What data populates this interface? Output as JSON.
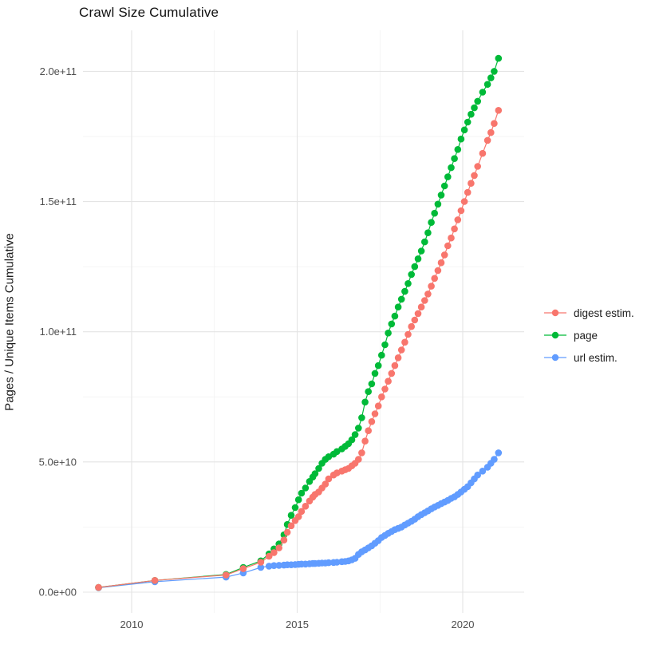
{
  "chart_data": {
    "type": "scatter",
    "title": "Crawl Size Cumulative",
    "xlabel": "",
    "ylabel": "Pages / Unique Items Cumulative",
    "legend_position": "right",
    "grid": "major and minor, light gray on white",
    "x_axis": {
      "tick_values": [
        2010,
        2015,
        2020
      ],
      "tick_labels": [
        "2010",
        "2015",
        "2020"
      ],
      "minor_tick_values": [
        2012.5,
        2017.5
      ],
      "range": [
        2008.55,
        2021.8
      ]
    },
    "y_axis": {
      "unit_note": "series values stored in units of 1e10",
      "tick_values_e10": [
        0,
        5,
        10,
        15,
        20
      ],
      "tick_labels": [
        "0.0e+00",
        "5.0e+10",
        "1.0e+11",
        "1.5e+11",
        "2.0e+11"
      ],
      "minor_tick_values_e10": [
        2.5,
        7.5,
        12.5,
        17.5
      ],
      "range_e10": [
        -0.75,
        21.6
      ]
    },
    "x_years": [
      2009.0,
      2010.7,
      2012.85,
      2013.37,
      2013.9,
      2014.15,
      2014.3,
      2014.45,
      2014.6,
      2014.7,
      2014.82,
      2014.94,
      2015.04,
      2015.13,
      2015.25,
      2015.37,
      2015.47,
      2015.54,
      2015.65,
      2015.75,
      2015.85,
      2015.95,
      2016.1,
      2016.2,
      2016.35,
      2016.45,
      2016.55,
      2016.65,
      2016.75,
      2016.85,
      2016.95,
      2017.05,
      2017.15,
      2017.25,
      2017.35,
      2017.45,
      2017.55,
      2017.65,
      2017.75,
      2017.85,
      2017.95,
      2018.05,
      2018.15,
      2018.25,
      2018.35,
      2018.45,
      2018.55,
      2018.65,
      2018.75,
      2018.85,
      2018.95,
      2019.05,
      2019.15,
      2019.25,
      2019.35,
      2019.45,
      2019.55,
      2019.65,
      2019.75,
      2019.85,
      2019.95,
      2020.05,
      2020.15,
      2020.25,
      2020.35,
      2020.45,
      2020.6,
      2020.75,
      2020.85,
      2020.95,
      2021.08
    ],
    "draw_order": [
      "url estim.",
      "page",
      "digest estim."
    ],
    "series": [
      {
        "name": "digest estim.",
        "color": "#F8766D",
        "values_e10": [
          0.18,
          0.45,
          0.66,
          0.9,
          1.15,
          1.38,
          1.52,
          1.7,
          2.0,
          2.3,
          2.55,
          2.75,
          2.9,
          3.1,
          3.3,
          3.5,
          3.65,
          3.75,
          3.85,
          4.0,
          4.15,
          4.35,
          4.5,
          4.58,
          4.65,
          4.7,
          4.75,
          4.85,
          4.95,
          5.1,
          5.35,
          5.8,
          6.2,
          6.55,
          6.85,
          7.15,
          7.5,
          7.8,
          8.1,
          8.4,
          8.7,
          9.0,
          9.3,
          9.6,
          9.9,
          10.2,
          10.45,
          10.7,
          10.95,
          11.2,
          11.45,
          11.75,
          12.05,
          12.35,
          12.65,
          12.95,
          13.3,
          13.6,
          13.95,
          14.3,
          14.65,
          15.0,
          15.35,
          15.7,
          16.0,
          16.35,
          16.85,
          17.35,
          17.65,
          18.0,
          18.5
        ]
      },
      {
        "name": "page",
        "color": "#00BA38",
        "values_e10": [
          0.18,
          0.45,
          0.68,
          0.95,
          1.2,
          1.47,
          1.66,
          1.85,
          2.2,
          2.6,
          2.95,
          3.25,
          3.55,
          3.8,
          4.0,
          4.25,
          4.42,
          4.55,
          4.75,
          4.95,
          5.1,
          5.2,
          5.3,
          5.4,
          5.5,
          5.6,
          5.7,
          5.85,
          6.05,
          6.3,
          6.7,
          7.3,
          7.7,
          8.0,
          8.4,
          8.7,
          9.1,
          9.5,
          9.95,
          10.3,
          10.6,
          10.95,
          11.25,
          11.55,
          11.85,
          12.2,
          12.5,
          12.8,
          13.1,
          13.45,
          13.8,
          14.2,
          14.55,
          14.9,
          15.25,
          15.6,
          15.95,
          16.3,
          16.65,
          17.0,
          17.4,
          17.75,
          18.05,
          18.35,
          18.6,
          18.85,
          19.2,
          19.5,
          19.75,
          20.0,
          20.5
        ]
      },
      {
        "name": "url estim.",
        "color": "#619CFF",
        "values_e10": [
          0.17,
          0.4,
          0.58,
          0.74,
          0.95,
          1.0,
          1.02,
          1.03,
          1.04,
          1.05,
          1.05,
          1.06,
          1.07,
          1.08,
          1.08,
          1.09,
          1.1,
          1.1,
          1.11,
          1.12,
          1.12,
          1.13,
          1.14,
          1.15,
          1.17,
          1.18,
          1.2,
          1.24,
          1.3,
          1.45,
          1.55,
          1.62,
          1.7,
          1.78,
          1.88,
          1.98,
          2.1,
          2.18,
          2.26,
          2.33,
          2.4,
          2.45,
          2.5,
          2.58,
          2.65,
          2.72,
          2.8,
          2.9,
          2.98,
          3.05,
          3.12,
          3.2,
          3.27,
          3.33,
          3.4,
          3.46,
          3.52,
          3.6,
          3.66,
          3.75,
          3.85,
          3.95,
          4.05,
          4.2,
          4.35,
          4.5,
          4.65,
          4.8,
          4.95,
          5.1,
          5.35
        ]
      }
    ],
    "style": {
      "major_grid_color": "#e4e4e4",
      "minor_grid_color": "#f1f1f1",
      "tick_text_color": "#4d4d4d",
      "point_radius_px": 4.3
    }
  }
}
